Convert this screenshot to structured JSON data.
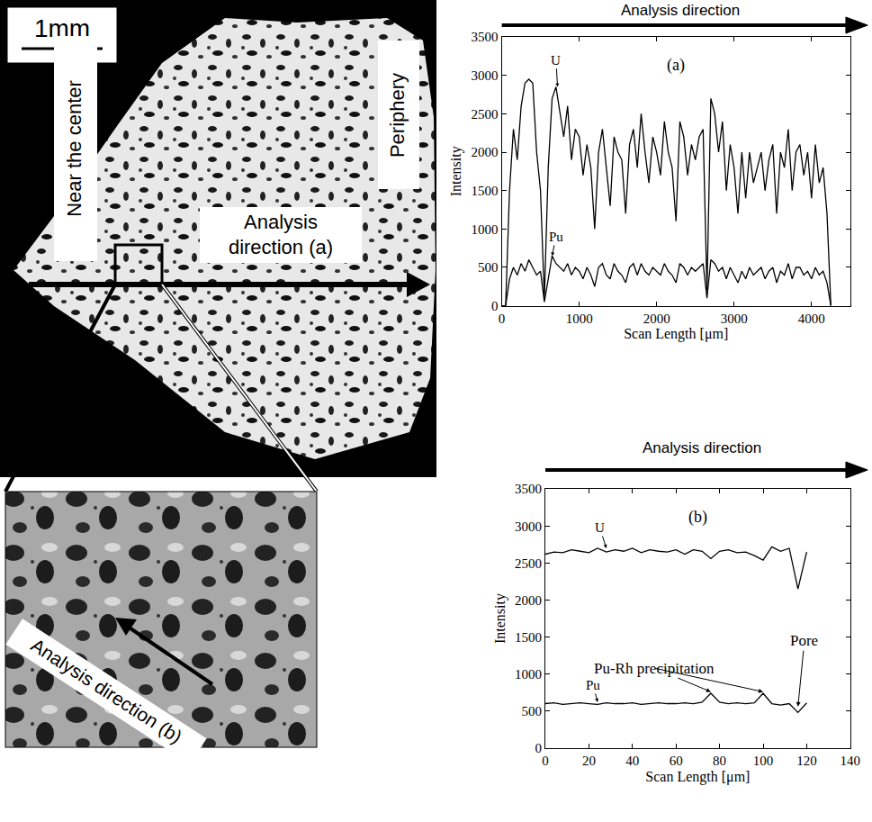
{
  "micrograph": {
    "scale_bar": "1mm",
    "center_label": "Near the center",
    "edge_label": "Periphery",
    "direction_label": "Analysis direction (a)",
    "inset": {
      "direction_label": "Analysis direction (b)"
    }
  },
  "chart_data": [
    {
      "type": "line",
      "title": "(a)",
      "subtitle": "Analysis direction",
      "x_label": "Scan Length [μm]",
      "y_label": "Intensity",
      "grid": false,
      "xlim": [
        0,
        4500
      ],
      "xticks": [
        0,
        1000,
        2000,
        3000,
        4000
      ],
      "ylim": [
        0,
        3500
      ],
      "yticks": [
        0,
        500,
        1000,
        1500,
        2000,
        2500,
        3000,
        3500
      ],
      "x": [
        0,
        50,
        100,
        150,
        200,
        250,
        300,
        350,
        400,
        450,
        500,
        550,
        600,
        650,
        700,
        750,
        800,
        850,
        900,
        950,
        1000,
        1050,
        1100,
        1150,
        1200,
        1250,
        1300,
        1350,
        1400,
        1450,
        1500,
        1550,
        1600,
        1650,
        1700,
        1750,
        1800,
        1850,
        1900,
        1950,
        2000,
        2050,
        2100,
        2150,
        2200,
        2250,
        2300,
        2350,
        2400,
        2450,
        2500,
        2550,
        2600,
        2650,
        2700,
        2750,
        2800,
        2850,
        2900,
        2950,
        3000,
        3050,
        3100,
        3150,
        3200,
        3250,
        3300,
        3350,
        3400,
        3450,
        3500,
        3550,
        3600,
        3650,
        3700,
        3750,
        3800,
        3850,
        3900,
        3950,
        4000,
        4050,
        4100,
        4150,
        4200,
        4250
      ],
      "series": [
        {
          "name": "U",
          "color": "#000000",
          "label": {
            "x": 700,
            "y": 3200,
            "arrow_to": [
              720,
              2850
            ]
          },
          "values": [
            0,
            0,
            1500,
            2300,
            1900,
            2600,
            2900,
            2950,
            2900,
            2000,
            1500,
            100,
            1800,
            2700,
            2850,
            2500,
            2200,
            2600,
            1900,
            2300,
            2200,
            1700,
            2100,
            1800,
            1000,
            2000,
            2300,
            1800,
            1300,
            2200,
            2000,
            1900,
            1200,
            2100,
            2300,
            1800,
            2500,
            2000,
            1600,
            2200,
            2000,
            1700,
            2400,
            2000,
            1800,
            1100,
            2400,
            2200,
            1700,
            2100,
            1900,
            2200,
            2300,
            200,
            2700,
            2500,
            2000,
            2400,
            1500,
            2100,
            1800,
            1200,
            2000,
            1400,
            2000,
            1600,
            1800,
            2000,
            1500,
            1900,
            2100,
            1200,
            2000,
            1800,
            2300,
            1500,
            2000,
            2100,
            1700,
            2000,
            1400,
            2100,
            1600,
            1800,
            1200,
            0
          ]
        },
        {
          "name": "Pu",
          "color": "#000000",
          "label": {
            "x": 700,
            "y": 900,
            "arrow_to": [
              650,
              650
            ]
          },
          "values": [
            0,
            0,
            350,
            500,
            400,
            550,
            450,
            600,
            500,
            400,
            450,
            50,
            350,
            650,
            550,
            500,
            450,
            550,
            400,
            500,
            450,
            350,
            500,
            400,
            250,
            500,
            550,
            400,
            350,
            550,
            450,
            400,
            300,
            500,
            550,
            400,
            550,
            450,
            400,
            500,
            450,
            400,
            550,
            450,
            400,
            300,
            550,
            500,
            400,
            500,
            450,
            500,
            550,
            100,
            600,
            550,
            450,
            500,
            350,
            500,
            400,
            300,
            450,
            350,
            500,
            400,
            450,
            500,
            350,
            450,
            500,
            300,
            450,
            400,
            550,
            350,
            500,
            500,
            400,
            450,
            350,
            500,
            400,
            450,
            300,
            0
          ]
        }
      ],
      "annotations": []
    },
    {
      "type": "line",
      "title": "(b)",
      "subtitle": "Analysis direction",
      "x_label": "Scan Length [μm]",
      "y_label": "Intensity",
      "grid": false,
      "xlim": [
        0,
        140
      ],
      "xticks": [
        0,
        20,
        40,
        60,
        80,
        100,
        120,
        140
      ],
      "ylim": [
        0,
        3500
      ],
      "yticks": [
        0,
        500,
        1000,
        1500,
        2000,
        2500,
        3000,
        3500
      ],
      "x": [
        0,
        4,
        8,
        12,
        16,
        20,
        24,
        28,
        32,
        36,
        40,
        44,
        48,
        52,
        56,
        60,
        64,
        68,
        72,
        76,
        80,
        84,
        88,
        92,
        96,
        100,
        104,
        108,
        112,
        116,
        120
      ],
      "series": [
        {
          "name": "U",
          "color": "#000000",
          "label": {
            "x": 25,
            "y": 2980,
            "arrow_to": [
              28,
              2700
            ]
          },
          "values": [
            2620,
            2650,
            2640,
            2680,
            2660,
            2640,
            2700,
            2650,
            2680,
            2660,
            2700,
            2640,
            2680,
            2660,
            2650,
            2680,
            2620,
            2680,
            2660,
            2560,
            2660,
            2680,
            2640,
            2650,
            2600,
            2540,
            2720,
            2660,
            2700,
            2150,
            2650
          ]
        },
        {
          "name": "Pu",
          "color": "#000000",
          "label": {
            "x": 22,
            "y": 850,
            "arrow_to": [
              24,
              620
            ]
          },
          "values": [
            600,
            610,
            590,
            600,
            610,
            600,
            590,
            610,
            600,
            600,
            610,
            590,
            600,
            610,
            600,
            600,
            610,
            600,
            620,
            740,
            620,
            600,
            610,
            600,
            610,
            740,
            600,
            580,
            600,
            480,
            610
          ]
        }
      ],
      "annotations": [
        {
          "text": "Pu-Rh precipitation",
          "x": 50,
          "y": 1080,
          "arrow_to": [
            [
              76,
              760
            ],
            [
              100,
              760
            ]
          ]
        },
        {
          "text": "Pore",
          "x": 119,
          "y": 1450,
          "arrow_to": [
            [
              116,
              560
            ]
          ]
        }
      ]
    }
  ]
}
